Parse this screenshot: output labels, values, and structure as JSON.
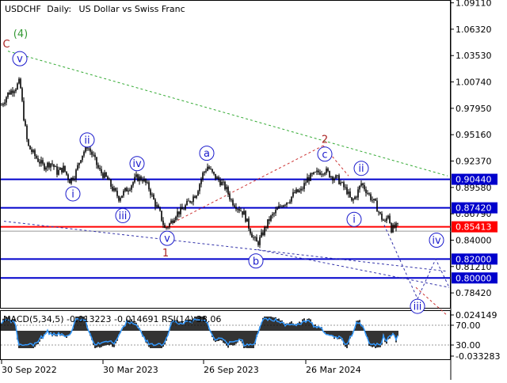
{
  "header": {
    "symbol": "USDCHF",
    "timeframe": "Daily:",
    "description": "US Dollar vs Swiss Franc"
  },
  "colors": {
    "candles": "#000000",
    "level_line": "#0000cc",
    "resistance_line": "#ff0000",
    "wave_blue": "#1a1acc",
    "wave_green": "#339933",
    "wave_red": "#aa2222",
    "trend_green": "#33aa33",
    "trend_red": "#cc3333",
    "trend_blue": "#3333aa",
    "macd_hist": "#000000",
    "macd_signal": "#3399ff"
  },
  "chart_data": {
    "type": "candlestick",
    "price_axis": {
      "ticks": [
        "1.09110",
        "1.06320",
        "1.03530",
        "1.00740",
        "0.97950",
        "0.95160",
        "0.92370",
        "0.89580",
        "0.86790",
        "0.84000",
        "0.81210",
        "0.78420"
      ]
    },
    "price_range": [
      0.7684,
      1.0941
    ],
    "date_axis": {
      "ticks": [
        "30 Sep 2022",
        "30 Mar 2023",
        "26 Sep 2023",
        "26 Mar 2024"
      ]
    },
    "price_boxes": [
      {
        "price": 0.9044,
        "label": "0.90440",
        "kind": "level"
      },
      {
        "price": 0.8742,
        "label": "0.87420",
        "kind": "level"
      },
      {
        "price": 0.85413,
        "label": "0.85413",
        "kind": "current"
      },
      {
        "price": 0.82,
        "label": "0.82000",
        "kind": "level"
      },
      {
        "price": 0.8,
        "label": "0.80000",
        "kind": "level"
      }
    ],
    "price_path": [
      [
        0,
        0.98
      ],
      [
        10,
        0.995
      ],
      [
        20,
        1.002
      ],
      [
        25,
        1.008
      ],
      [
        30,
        0.97
      ],
      [
        35,
        0.94
      ],
      [
        45,
        0.928
      ],
      [
        55,
        0.918
      ],
      [
        65,
        0.922
      ],
      [
        72,
        0.912
      ],
      [
        80,
        0.916
      ],
      [
        88,
        0.903
      ],
      [
        95,
        0.91
      ],
      [
        102,
        0.928
      ],
      [
        110,
        0.94
      ],
      [
        118,
        0.928
      ],
      [
        125,
        0.914
      ],
      [
        135,
        0.905
      ],
      [
        143,
        0.893
      ],
      [
        150,
        0.885
      ],
      [
        158,
        0.892
      ],
      [
        165,
        0.898
      ],
      [
        172,
        0.906
      ],
      [
        180,
        0.905
      ],
      [
        188,
        0.895
      ],
      [
        195,
        0.88
      ],
      [
        202,
        0.868
      ],
      [
        208,
        0.852
      ],
      [
        215,
        0.858
      ],
      [
        222,
        0.868
      ],
      [
        230,
        0.872
      ],
      [
        240,
        0.882
      ],
      [
        248,
        0.89
      ],
      [
        256,
        0.91
      ],
      [
        262,
        0.918
      ],
      [
        270,
        0.908
      ],
      [
        278,
        0.902
      ],
      [
        285,
        0.895
      ],
      [
        292,
        0.882
      ],
      [
        300,
        0.875
      ],
      [
        308,
        0.868
      ],
      [
        315,
        0.852
      ],
      [
        320,
        0.842
      ],
      [
        325,
        0.836
      ],
      [
        332,
        0.848
      ],
      [
        340,
        0.862
      ],
      [
        348,
        0.87
      ],
      [
        356,
        0.878
      ],
      [
        364,
        0.882
      ],
      [
        372,
        0.89
      ],
      [
        380,
        0.892
      ],
      [
        388,
        0.905
      ],
      [
        395,
        0.908
      ],
      [
        402,
        0.912
      ],
      [
        410,
        0.914
      ],
      [
        418,
        0.908
      ],
      [
        426,
        0.905
      ],
      [
        432,
        0.898
      ],
      [
        438,
        0.892
      ],
      [
        444,
        0.88
      ],
      [
        450,
        0.888
      ],
      [
        456,
        0.9
      ],
      [
        462,
        0.893
      ],
      [
        468,
        0.885
      ],
      [
        474,
        0.878
      ],
      [
        480,
        0.866
      ],
      [
        486,
        0.858
      ],
      [
        490,
        0.868
      ],
      [
        494,
        0.852
      ],
      [
        500,
        0.854
      ]
    ],
    "wave_labels": [
      {
        "label": "(4)",
        "x": 26,
        "price": 1.059,
        "style": "green"
      },
      {
        "label": "C",
        "x": 8,
        "price": 1.048,
        "style": "red"
      },
      {
        "label": "v",
        "x": 25,
        "price": 1.032,
        "style": "circle"
      },
      {
        "label": "ii",
        "x": 110,
        "price": 0.946,
        "style": "circle"
      },
      {
        "label": "iv",
        "x": 173,
        "price": 0.921,
        "style": "circle"
      },
      {
        "label": "a",
        "x": 261,
        "price": 0.932,
        "style": "circle"
      },
      {
        "label": "2",
        "x": 410,
        "price": 0.947,
        "style": "red"
      },
      {
        "label": "c",
        "x": 410,
        "price": 0.931,
        "style": "circle"
      },
      {
        "label": "ii",
        "x": 456,
        "price": 0.916,
        "style": "circle"
      },
      {
        "label": "i",
        "x": 92,
        "price": 0.889,
        "style": "circle"
      },
      {
        "label": "iii",
        "x": 155,
        "price": 0.866,
        "style": "circle"
      },
      {
        "label": "i",
        "x": 447,
        "price": 0.862,
        "style": "circle"
      },
      {
        "label": "v",
        "x": 211,
        "price": 0.842,
        "style": "circle"
      },
      {
        "label": "1",
        "x": 209,
        "price": 0.827,
        "style": "red"
      },
      {
        "label": "iv",
        "x": 551,
        "price": 0.84,
        "style": "circle"
      },
      {
        "label": "b",
        "x": 323,
        "price": 0.818,
        "style": "circle"
      },
      {
        "label": "iii",
        "x": 527,
        "price": 0.77,
        "style": "circle"
      }
    ],
    "trend_lines": [
      {
        "color": "green",
        "points": [
          [
            10,
            1.04
          ],
          [
            565,
            0.908
          ]
        ]
      },
      {
        "color": "blue",
        "points": [
          [
            5,
            0.86
          ],
          [
            565,
            0.807
          ]
        ]
      },
      {
        "color": "blue",
        "points": [
          [
            325,
            0.83
          ],
          [
            567,
            0.79
          ]
        ]
      },
      {
        "color": "red",
        "points": [
          [
            208,
            0.854
          ],
          [
            408,
            0.94
          ]
        ]
      },
      {
        "color": "red",
        "points": [
          [
            408,
            0.94
          ],
          [
            440,
            0.908
          ]
        ]
      },
      {
        "color": "red",
        "points": [
          [
            525,
            0.79
          ],
          [
            565,
            0.76
          ]
        ]
      },
      {
        "color": "blue",
        "points": [
          [
            485,
            0.856
          ],
          [
            527,
            0.778
          ],
          [
            550,
            0.82
          ],
          [
            567,
            0.79
          ]
        ]
      }
    ],
    "indicator": {
      "title": "MACD(5,34,5) -0.013223 -0.014691 RSI(14) 38.06",
      "ticks": [
        "0.024149",
        "70.00",
        "30.00",
        "-0.033283"
      ],
      "levels": [
        70.0,
        30.0
      ]
    }
  }
}
